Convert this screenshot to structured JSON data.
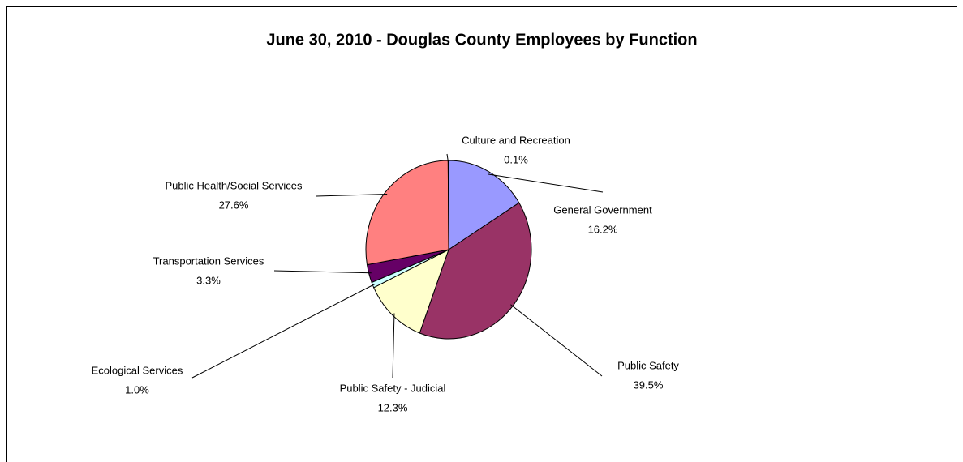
{
  "chart_data": {
    "type": "pie",
    "title": "June 30, 2010 - Douglas County Employees by Function",
    "categories": [
      "General Government",
      "Public Safety",
      "Public Safety - Judicial",
      "Ecological Services",
      "Transportation Services",
      "Public Health/Social Services",
      "Culture and Recreation"
    ],
    "values": [
      16.2,
      39.5,
      12.3,
      1.0,
      3.3,
      27.6,
      0.1
    ],
    "value_labels": [
      "16.2%",
      "39.5%",
      "12.3%",
      "1.0%",
      "3.3%",
      "27.6%",
      "0.1%"
    ],
    "colors": [
      "#9999ff",
      "#993366",
      "#ffffcc",
      "#ccffff",
      "#660066",
      "#ff8080",
      "#0066cc"
    ]
  }
}
